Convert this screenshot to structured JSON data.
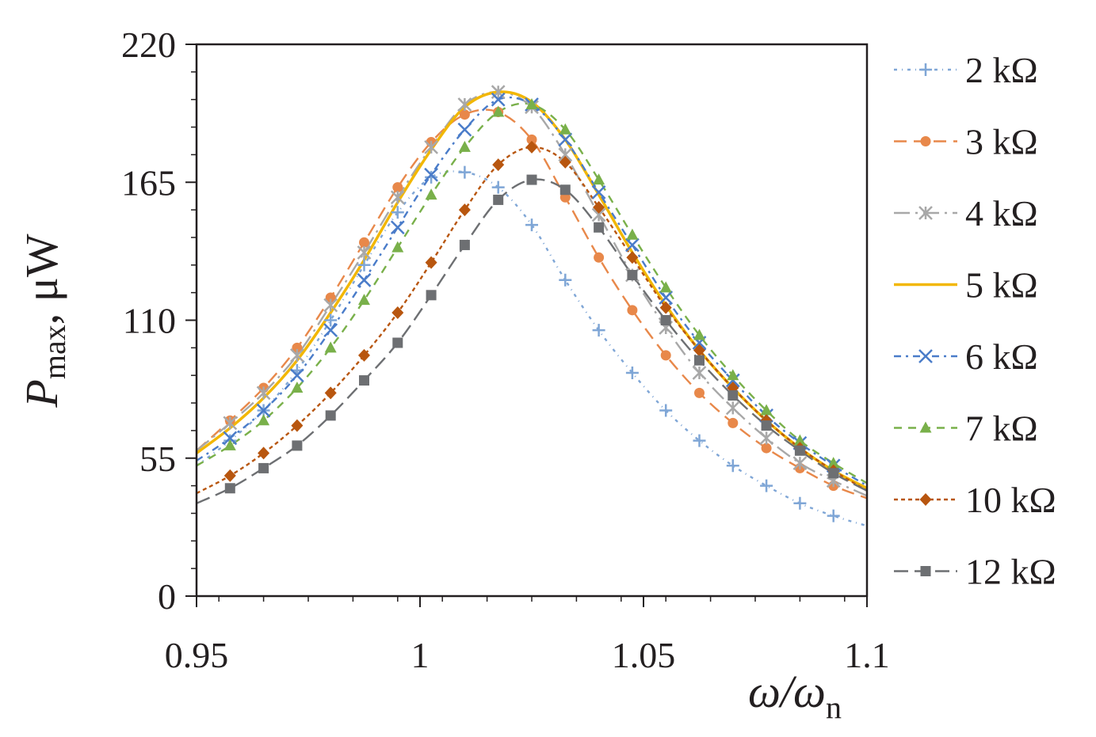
{
  "chart_data": {
    "type": "line",
    "title": "",
    "xlabel": "ω/ω",
    "xlabel_sub": "n",
    "ylabel": "P",
    "ylabel_sub": "max",
    "ylabel_unit": ", μW",
    "xlim": [
      0.95,
      1.1
    ],
    "ylim": [
      0,
      220
    ],
    "x_ticks": [
      0.95,
      1,
      1.05,
      1.1
    ],
    "x_tick_labels": [
      "0.95",
      "1",
      "1.05",
      "1.1"
    ],
    "y_ticks": [
      0,
      55,
      110,
      165,
      220
    ],
    "y_tick_labels": [
      "0",
      "55",
      "110",
      "165",
      "220"
    ],
    "grid": false,
    "legend_position": "right",
    "x": [
      0.95,
      0.9575,
      0.965,
      0.9725,
      0.98,
      0.9875,
      0.995,
      1.0025,
      1.01,
      1.0175,
      1.025,
      1.0325,
      1.04,
      1.0475,
      1.055,
      1.0625,
      1.07,
      1.0775,
      1.085,
      1.0925,
      1.1
    ],
    "series": [
      {
        "name": "2 kΩ",
        "color": "#7fa6d6",
        "dash": "4,6,1,6",
        "marker": "plus",
        "values": [
          52,
          62,
          74,
          90,
          110,
          132,
          153,
          167,
          169,
          163,
          148,
          126,
          106,
          89,
          74,
          62,
          52,
          44,
          37,
          32,
          28
        ]
      },
      {
        "name": "3 kΩ",
        "color": "#e8884a",
        "dash": "16,9",
        "marker": "circle",
        "values": [
          58,
          70,
          83,
          99,
          119,
          141,
          163,
          181,
          192,
          193,
          182,
          159,
          135,
          114,
          96,
          81,
          69,
          59,
          51,
          44,
          39
        ]
      },
      {
        "name": "4 kΩ",
        "color": "#a8a8a8",
        "dash": "20,7,3,7",
        "marker": "star",
        "values": [
          58,
          69,
          81,
          96,
          116,
          137,
          159,
          179,
          196,
          201,
          195,
          176,
          152,
          128,
          107,
          89,
          75,
          63,
          53,
          46,
          40
        ]
      },
      {
        "name": "5 kΩ",
        "color": "#f2b705",
        "dash": "",
        "marker": "none",
        "values": [
          57,
          67,
          79,
          94,
          113,
          134,
          157,
          178,
          195,
          201,
          197,
          182,
          160,
          137,
          116,
          98,
          83,
          70,
          59,
          50,
          43
        ]
      },
      {
        "name": "6 kΩ",
        "color": "#4a7cc9",
        "dash": "9,6,3,6",
        "marker": "x",
        "values": [
          54,
          63,
          74,
          88,
          106,
          126,
          147,
          168,
          186,
          198,
          196,
          182,
          161,
          140,
          119,
          101,
          86,
          72,
          61,
          52,
          44
        ]
      },
      {
        "name": "7 kΩ",
        "color": "#79b04a",
        "dash": "10,8",
        "marker": "triangle",
        "values": [
          52,
          60,
          70,
          83,
          99,
          118,
          139,
          160,
          179,
          193,
          196,
          186,
          166,
          144,
          123,
          104,
          88,
          74,
          62,
          53,
          45
        ]
      },
      {
        "name": "10 kΩ",
        "color": "#b8560f",
        "dash": "5,4",
        "marker": "diamond",
        "values": [
          41,
          48,
          57,
          68,
          81,
          96,
          113,
          133,
          154,
          172,
          179,
          173,
          155,
          135,
          115,
          98,
          83,
          70,
          59,
          50,
          42
        ]
      },
      {
        "name": "12 kΩ",
        "color": "#6d6f72",
        "dash": "18,8",
        "marker": "square",
        "values": [
          37,
          43,
          51,
          60,
          72,
          86,
          101,
          120,
          140,
          158,
          166,
          162,
          147,
          128,
          110,
          94,
          80,
          68,
          58,
          49,
          42
        ]
      }
    ]
  }
}
